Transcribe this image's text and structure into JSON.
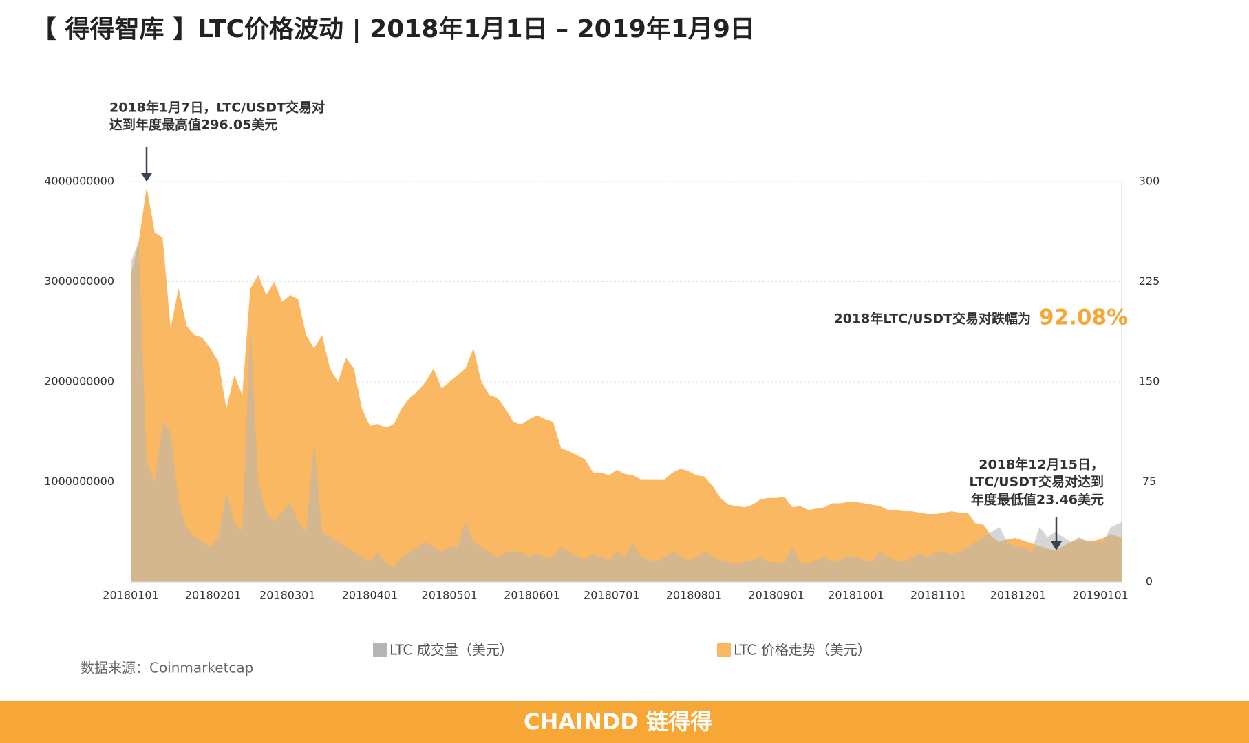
{
  "chart_data": {
    "type": "area",
    "title": "【 得得智库 】LTC价格波动 | 2018年1月1日 – 2019年1月9日",
    "annotations": [
      {
        "lines": [
          "2018年1月7日，LTC/USDT交易对",
          "达到年度最高值296.05美元"
        ]
      },
      {
        "lines": [
          "2018年12月15日，",
          "LTC/USDT交易对达到",
          "年度最低值23.46美元"
        ]
      },
      {
        "lines": [
          "2018年LTC/USDT交易对跌幅为",
          "92.08%"
        ]
      }
    ],
    "source": "数据来源：Coinmarketcap",
    "footer": "CHAINDD 链得得",
    "grid": true,
    "xlim": [
      "20180101",
      "20190109"
    ],
    "xticks": [
      "20180101",
      "20180201",
      "20180301",
      "20180401",
      "20180501",
      "20180601",
      "20180701",
      "20180801",
      "20180901",
      "20181001",
      "20181101",
      "20181201",
      "20190101"
    ],
    "ylim": [
      0,
      4000000000
    ],
    "yticks": [
      1000000000,
      2000000000,
      3000000000,
      4000000000
    ],
    "y2lim": [
      0,
      300
    ],
    "y2ticks": [
      0,
      75,
      150,
      225,
      300
    ],
    "x": [
      "20180101",
      "20180104",
      "20180107",
      "20180110",
      "20180113",
      "20180116",
      "20180119",
      "20180122",
      "20180125",
      "20180128",
      "20180131",
      "20180203",
      "20180206",
      "20180209",
      "20180212",
      "20180215",
      "20180218",
      "20180221",
      "20180224",
      "20180227",
      "20180302",
      "20180305",
      "20180308",
      "20180311",
      "20180314",
      "20180317",
      "20180320",
      "20180323",
      "20180326",
      "20180329",
      "20180401",
      "20180404",
      "20180407",
      "20180410",
      "20180413",
      "20180416",
      "20180419",
      "20180422",
      "20180425",
      "20180428",
      "20180501",
      "20180504",
      "20180507",
      "20180510",
      "20180513",
      "20180516",
      "20180519",
      "20180522",
      "20180525",
      "20180528",
      "20180531",
      "20180603",
      "20180606",
      "20180609",
      "20180612",
      "20180615",
      "20180618",
      "20180621",
      "20180624",
      "20180627",
      "20180630",
      "20180703",
      "20180706",
      "20180709",
      "20180712",
      "20180715",
      "20180718",
      "20180721",
      "20180724",
      "20180727",
      "20180730",
      "20180802",
      "20180805",
      "20180808",
      "20180811",
      "20180814",
      "20180817",
      "20180820",
      "20180823",
      "20180826",
      "20180829",
      "20180901",
      "20180904",
      "20180907",
      "20180910",
      "20180913",
      "20180916",
      "20180919",
      "20180922",
      "20180925",
      "20180928",
      "20181001",
      "20181004",
      "20181007",
      "20181010",
      "20181013",
      "20181016",
      "20181019",
      "20181022",
      "20181025",
      "20181028",
      "20181031",
      "20181103",
      "20181106",
      "20181109",
      "20181112",
      "20181115",
      "20181118",
      "20181121",
      "20181124",
      "20181127",
      "20181130",
      "20181203",
      "20181206",
      "20181209",
      "20181212",
      "20181215",
      "20181218",
      "20181221",
      "20181224",
      "20181227",
      "20181230",
      "20190102",
      "20190105",
      "20190109"
    ],
    "series": [
      {
        "name": "LTC 成交量（美元）",
        "color": "#b5b5b5",
        "axis": "y",
        "values": [
          3200000000,
          3400000000,
          1200000000,
          1000000000,
          1600000000,
          1500000000,
          800000000,
          550000000,
          450000000,
          400000000,
          350000000,
          450000000,
          900000000,
          600000000,
          500000000,
          2600000000,
          1000000000,
          700000000,
          600000000,
          700000000,
          800000000,
          600000000,
          500000000,
          1400000000,
          500000000,
          450000000,
          400000000,
          350000000,
          300000000,
          250000000,
          200000000,
          300000000,
          200000000,
          150000000,
          250000000,
          300000000,
          350000000,
          400000000,
          350000000,
          300000000,
          350000000,
          350000000,
          600000000,
          400000000,
          350000000,
          300000000,
          250000000,
          300000000,
          300000000,
          300000000,
          250000000,
          280000000,
          250000000,
          250000000,
          350000000,
          300000000,
          250000000,
          230000000,
          280000000,
          250000000,
          220000000,
          300000000,
          250000000,
          400000000,
          250000000,
          220000000,
          200000000,
          250000000,
          300000000,
          250000000,
          220000000,
          250000000,
          300000000,
          250000000,
          220000000,
          200000000,
          180000000,
          200000000,
          220000000,
          250000000,
          200000000,
          200000000,
          180000000,
          350000000,
          200000000,
          180000000,
          220000000,
          250000000,
          200000000,
          220000000,
          250000000,
          250000000,
          220000000,
          200000000,
          300000000,
          250000000,
          220000000,
          200000000,
          250000000,
          280000000,
          250000000,
          300000000,
          300000000,
          280000000,
          300000000,
          350000000,
          400000000,
          450000000,
          500000000,
          550000000,
          400000000,
          350000000,
          350000000,
          300000000,
          550000000,
          450000000,
          500000000,
          450000000,
          400000000,
          450000000,
          400000000,
          400000000,
          400000000,
          550000000,
          600000000
        ]
      },
      {
        "name": "LTC 价格走势（美元）",
        "color": "#fbb862",
        "axis": "y2",
        "values": [
          230,
          255,
          296.05,
          262,
          258,
          190,
          220,
          192,
          185,
          183,
          175,
          165,
          130,
          155,
          140,
          220,
          230,
          215,
          225,
          210,
          215,
          212,
          185,
          175,
          185,
          160,
          150,
          168,
          160,
          130,
          117,
          118,
          116,
          118,
          130,
          138,
          143,
          150,
          160,
          145,
          150,
          155,
          160,
          175,
          150,
          140,
          138,
          130,
          120,
          118,
          122,
          125,
          122,
          120,
          100,
          98,
          95,
          92,
          82,
          82,
          80,
          84,
          81,
          80,
          77,
          77,
          77,
          77,
          82,
          85,
          83,
          80,
          79,
          72,
          63,
          58,
          57,
          56,
          58,
          62,
          63,
          63,
          64,
          56,
          57,
          54,
          55,
          56,
          59,
          59,
          60,
          60,
          59,
          58,
          57,
          54,
          54,
          53,
          53,
          52,
          51,
          51,
          52,
          53,
          52,
          52,
          44,
          43,
          34,
          30,
          32,
          33,
          31,
          29,
          27,
          25,
          23.46,
          27,
          30,
          32,
          31,
          31,
          33,
          36,
          33
        ]
      }
    ]
  }
}
